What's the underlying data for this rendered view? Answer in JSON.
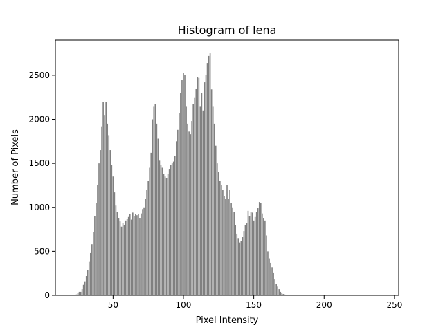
{
  "chart_data": {
    "type": "bar",
    "title": "Histogram of lena",
    "xlabel": "Pixel Intensity",
    "ylabel": "Number of Pixels",
    "xlim": [
      9,
      253
    ],
    "ylim": [
      0,
      2900
    ],
    "xticks": [
      50,
      100,
      150,
      200,
      250
    ],
    "yticks": [
      0,
      500,
      1000,
      1500,
      2000,
      2500
    ],
    "grid": false,
    "bar_color": "#808080",
    "x_start": 23,
    "values": [
      1,
      10,
      25,
      40,
      40,
      70,
      120,
      160,
      220,
      290,
      380,
      480,
      580,
      720,
      900,
      1050,
      1250,
      1500,
      1650,
      1920,
      2200,
      2050,
      2200,
      1950,
      1820,
      1650,
      1480,
      1350,
      1170,
      1020,
      950,
      880,
      840,
      780,
      820,
      800,
      850,
      870,
      890,
      920,
      860,
      940,
      900,
      920,
      910,
      920,
      880,
      930,
      980,
      1000,
      1100,
      1200,
      1300,
      1450,
      1620,
      2000,
      2150,
      2170,
      1950,
      1780,
      1530,
      1480,
      1450,
      1380,
      1350,
      1330,
      1380,
      1430,
      1480,
      1500,
      1520,
      1580,
      1750,
      1880,
      2070,
      2300,
      2450,
      2530,
      2500,
      2150,
      1950,
      1860,
      1830,
      1980,
      2170,
      2250,
      2350,
      2480,
      2470,
      2150,
      2300,
      2100,
      2420,
      2500,
      2640,
      2720,
      2750,
      2340,
      2150,
      1950,
      1700,
      1500,
      1400,
      1300,
      1250,
      1200,
      1130,
      1100,
      1250,
      1100,
      1200,
      1050,
      1000,
      950,
      800,
      700,
      650,
      600,
      620,
      660,
      730,
      800,
      820,
      960,
      900,
      950,
      940,
      850,
      890,
      950,
      990,
      1060,
      1050,
      930,
      880,
      850,
      680,
      500,
      420,
      370,
      320,
      260,
      180,
      130,
      100,
      70,
      40,
      25,
      15,
      10,
      5,
      3,
      2,
      1,
      0,
      0
    ]
  }
}
